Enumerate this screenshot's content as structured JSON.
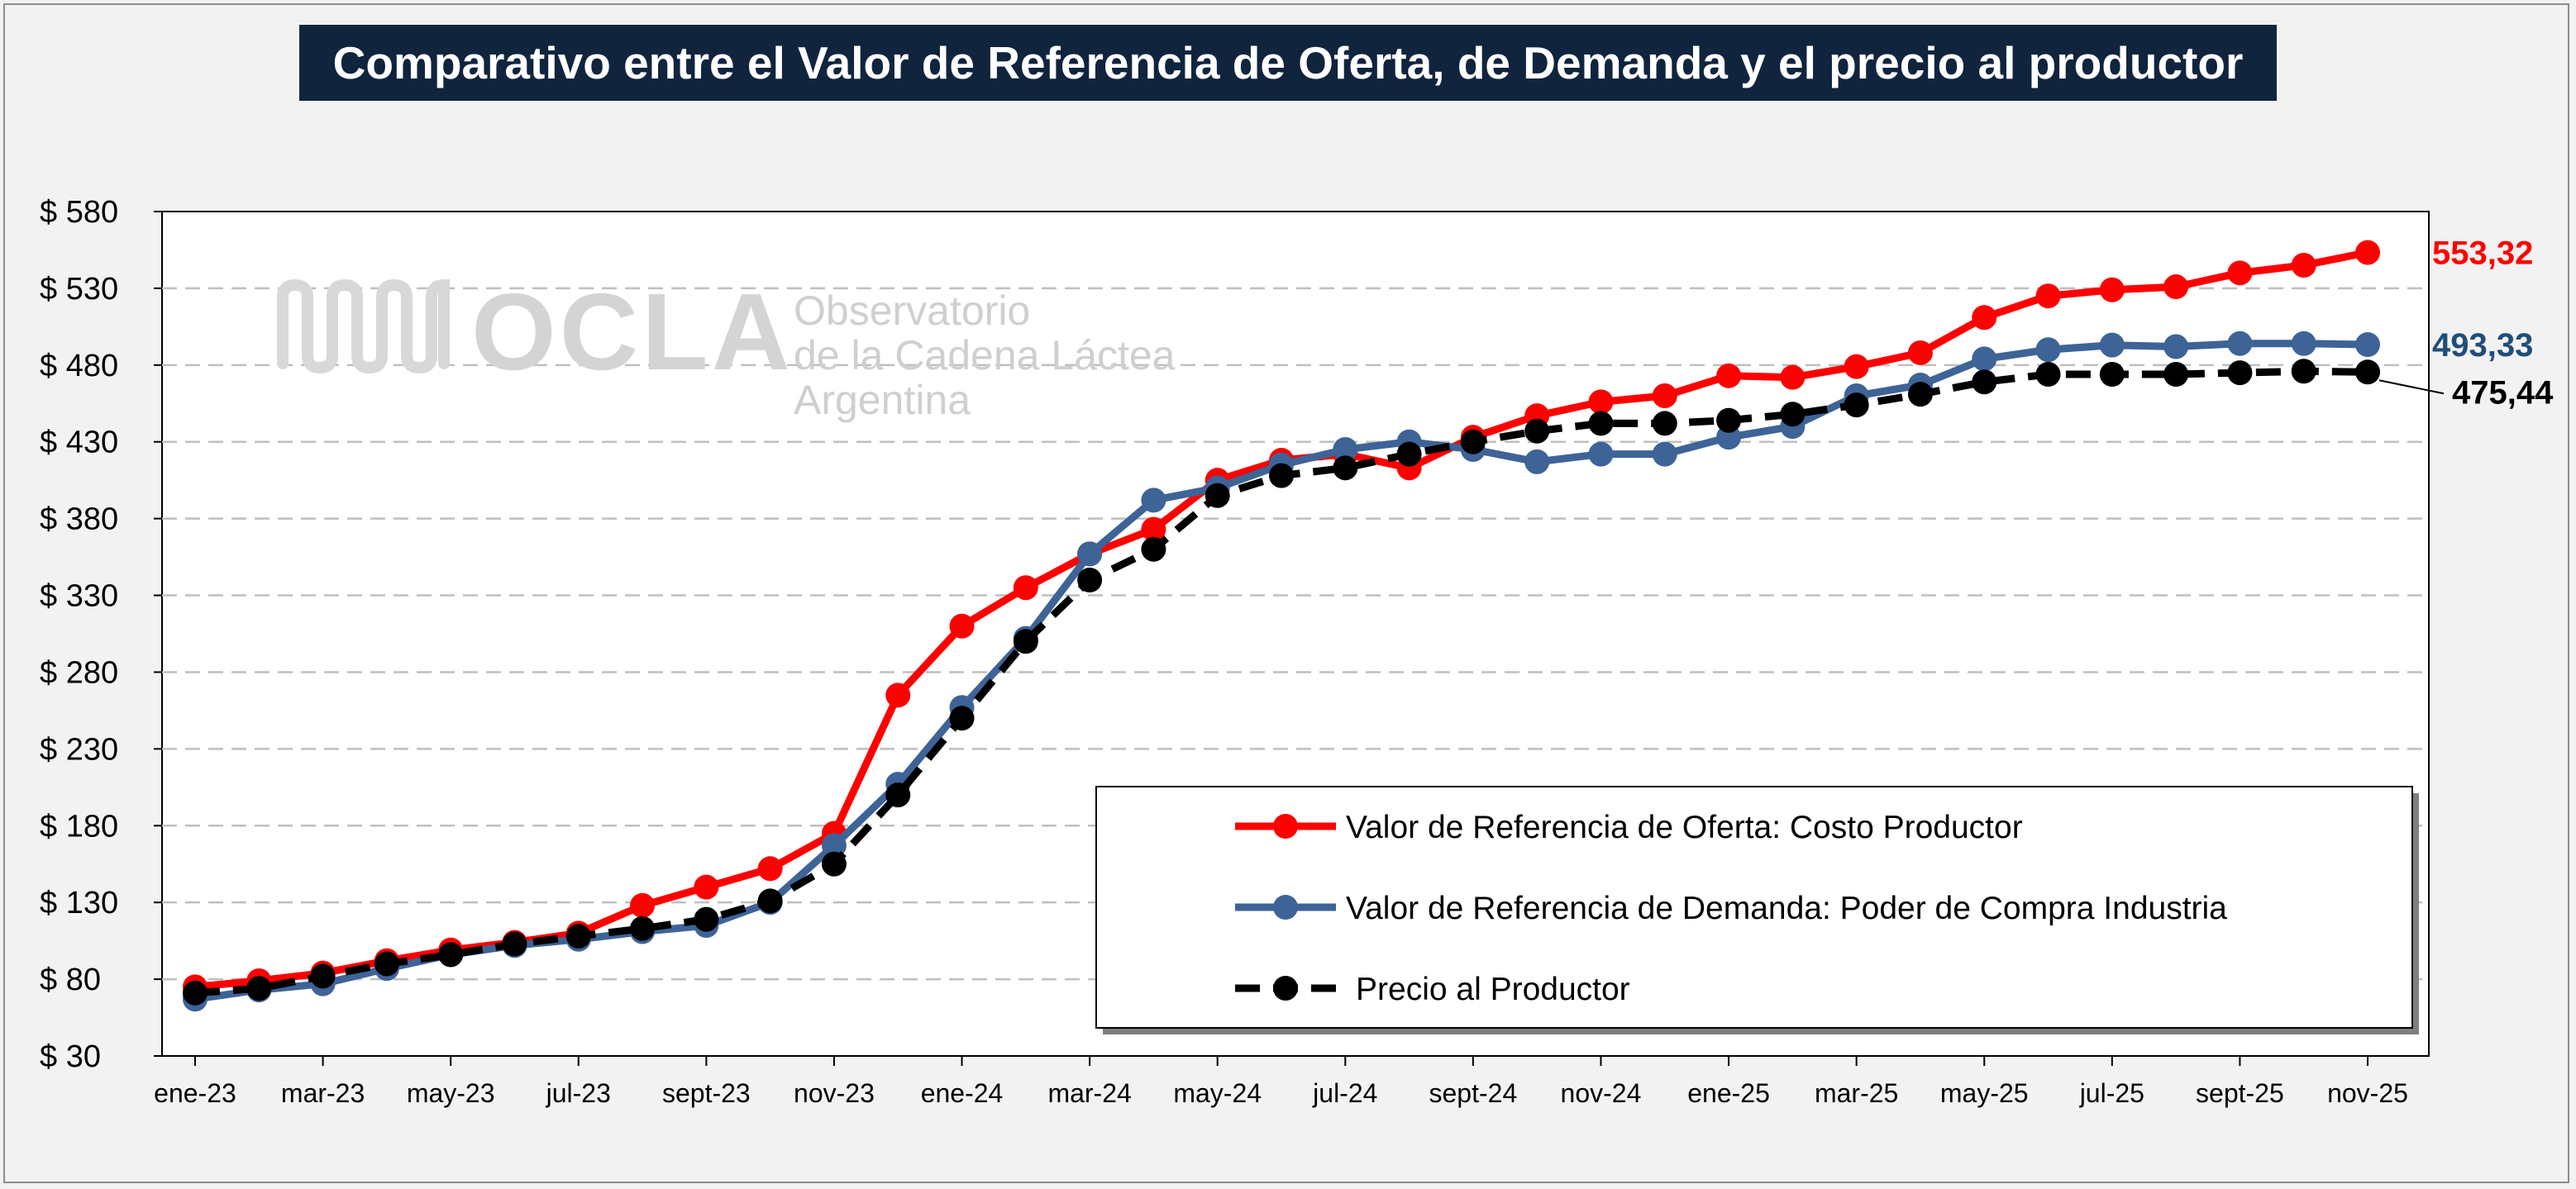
{
  "chart_data": {
    "type": "line",
    "title": "Comparativo entre el Valor de Referencia de Oferta, de Demanda y el precio al productor",
    "xlabel": "",
    "ylabel": "",
    "ylim": [
      30,
      580
    ],
    "yticks": [
      30,
      80,
      130,
      180,
      230,
      280,
      330,
      380,
      430,
      480,
      530,
      580
    ],
    "ytick_labels": [
      "$ 30",
      "$ 80",
      "$ 130",
      "$ 180",
      "$ 230",
      "$ 280",
      "$ 330",
      "$ 380",
      "$ 430",
      "$ 480",
      "$ 530",
      "$ 580"
    ],
    "x": [
      "ene-23",
      "feb-23",
      "mar-23",
      "abr-23",
      "may-23",
      "jun-23",
      "jul-23",
      "ago-23",
      "sept-23",
      "oct-23",
      "nov-23",
      "dic-23",
      "ene-24",
      "feb-24",
      "mar-24",
      "abr-24",
      "may-24",
      "jun-24",
      "jul-24",
      "ago-24",
      "sept-24",
      "oct-24",
      "nov-24",
      "dic-24",
      "ene-25",
      "feb-25",
      "mar-25",
      "abr-25",
      "may-25",
      "jun-25",
      "jul-25",
      "ago-25",
      "sept-25",
      "oct-25",
      "nov-25"
    ],
    "x_tick_labels_shown": [
      "ene-23",
      "mar-23",
      "may-23",
      "jul-23",
      "sept-23",
      "nov-23",
      "ene-24",
      "mar-24",
      "may-24",
      "jul-24",
      "sept-24",
      "nov-24",
      "ene-25",
      "mar-25",
      "may-25",
      "jul-25",
      "sept-25",
      "nov-25"
    ],
    "grid": true,
    "legend_position": "bottom-right",
    "series": [
      {
        "name": "Valor de Referencia de Oferta: Costo Productor",
        "color": "#ff0000",
        "style": "solid",
        "values": [
          75,
          79,
          84,
          92,
          99,
          104,
          110,
          128,
          140,
          152,
          175,
          265,
          310,
          335,
          357,
          373,
          405,
          418,
          422,
          413,
          433,
          447,
          456,
          460,
          473,
          472,
          479,
          488,
          511,
          525,
          529,
          531,
          540,
          545,
          553.32
        ]
      },
      {
        "name": "Valor de Referencia de Demanda: Poder de Compra Industria",
        "color": "#3e6397",
        "style": "solid",
        "values": [
          67,
          73,
          77,
          87,
          96,
          102,
          106,
          111,
          115,
          130,
          167,
          207,
          257,
          302,
          357,
          392,
          400,
          415,
          425,
          430,
          425,
          417,
          422,
          422,
          433,
          440,
          460,
          467,
          484,
          490,
          493,
          492,
          494,
          494,
          493.33
        ]
      },
      {
        "name": "Precio al Productor",
        "color": "#000000",
        "style": "dashed",
        "values": [
          71,
          74,
          82,
          90,
          96,
          103,
          108,
          113,
          119,
          131,
          155,
          200,
          250,
          300,
          340,
          360,
          395,
          408,
          413,
          422,
          430,
          437,
          442,
          442,
          444,
          448,
          454,
          461,
          469,
          474,
          474,
          474,
          475,
          476,
          475.44
        ]
      }
    ],
    "end_labels": [
      {
        "text": "553,32",
        "color": "#ff0000"
      },
      {
        "text": "493,33",
        "color": "#1f4e79"
      },
      {
        "text": "475,44",
        "color": "#000000"
      }
    ]
  },
  "watermark": {
    "name": "OCLA",
    "line1": "Observatorio",
    "line2": "de la Cadena Láctea",
    "line3": "Argentina"
  }
}
